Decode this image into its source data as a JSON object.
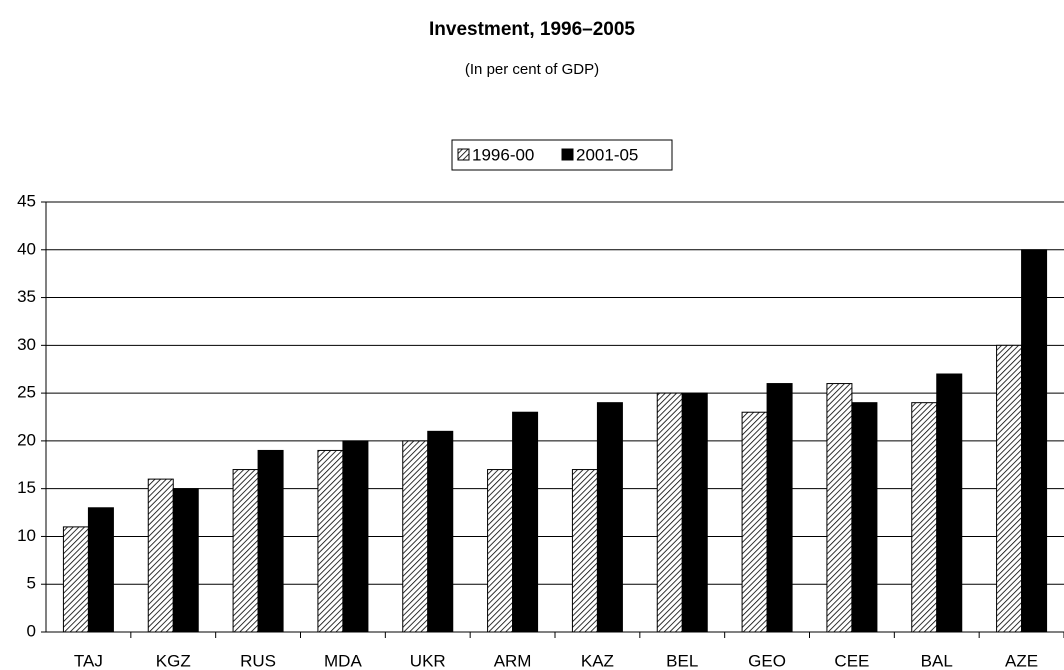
{
  "chart_data": {
    "type": "bar",
    "title": "Investment, 1996–2005",
    "subtitle": "(In per cent of GDP)",
    "categories": [
      "TAJ",
      "KGZ",
      "RUS",
      "MDA",
      "UKR",
      "ARM",
      "KAZ",
      "BEL",
      "GEO",
      "CEE",
      "BAL",
      "AZE"
    ],
    "series": [
      {
        "name": "1996-00",
        "color": "#000000",
        "hatch": true,
        "values": [
          11,
          16,
          17,
          19,
          20,
          17,
          17,
          25,
          23,
          26,
          24,
          30
        ]
      },
      {
        "name": "2001-05",
        "color": "#000000",
        "hatch": false,
        "values": [
          13,
          15,
          19,
          20,
          21,
          23,
          24,
          25,
          26,
          24,
          27,
          40
        ]
      }
    ],
    "ylim": [
      0,
      45
    ],
    "yticks": [
      0,
      5,
      10,
      15,
      20,
      25,
      30,
      35,
      40,
      45
    ],
    "grid": true,
    "legend": "top"
  }
}
